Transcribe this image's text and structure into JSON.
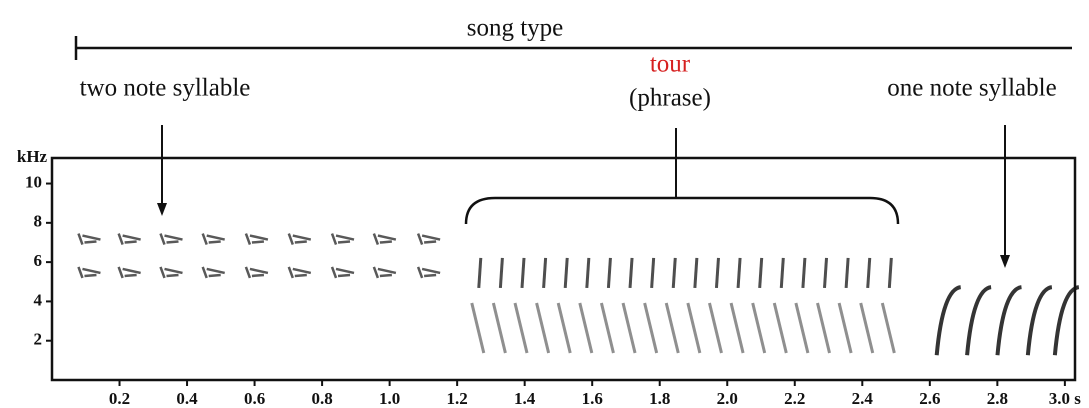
{
  "chart_data": {
    "type": "spectrogram",
    "title": "song type",
    "y_label": "kHz",
    "xlim": [
      0,
      3.03
    ],
    "ylim": [
      0,
      11.3
    ],
    "xticks": [
      0.2,
      0.4,
      0.6,
      0.8,
      {
        "value": 1.0,
        "label": "1.0"
      },
      1.2,
      1.4,
      1.6,
      1.8,
      {
        "value": 2.0,
        "label": "2.0"
      },
      2.2,
      2.4,
      2.6,
      2.8,
      {
        "value": 3.0,
        "label": "3.0 s"
      }
    ],
    "yticks": [
      2,
      4,
      6,
      8,
      10
    ],
    "annotations": {
      "two_note": "two note syllable",
      "tour": "tour",
      "phrase": "(phrase)",
      "one_note": "one note syllable"
    },
    "tour_color": "#d62020",
    "syllable_groups": [
      {
        "kind": "two_note",
        "times": [
          0.108,
          0.227,
          0.351,
          0.476,
          0.604,
          0.731,
          0.859,
          0.983,
          1.114
        ],
        "freqs": [
          7.2,
          5.5
        ]
      },
      {
        "kind": "tour",
        "times": [
          1.27,
          1.334,
          1.398,
          1.462,
          1.526,
          1.59,
          1.654,
          1.718,
          1.782,
          1.846,
          1.91,
          1.974,
          2.038,
          2.102,
          2.166,
          2.23,
          2.294,
          2.358,
          2.422,
          2.486
        ],
        "freqs": [
          5.5,
          2.8
        ]
      },
      {
        "kind": "one_note",
        "times": [
          2.65,
          2.74,
          2.83,
          2.92,
          3.0
        ],
        "freqs": [
          3.3
        ]
      }
    ]
  }
}
